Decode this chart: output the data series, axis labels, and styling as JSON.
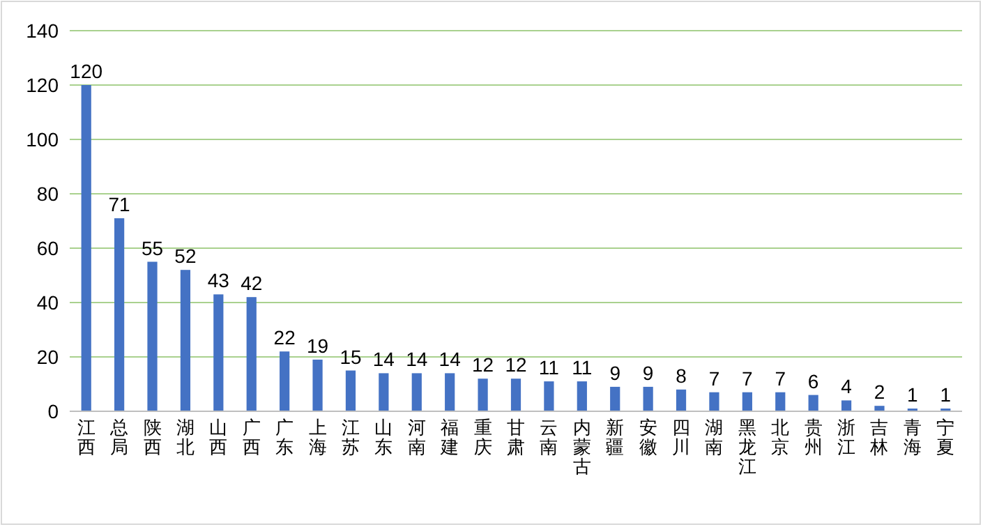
{
  "chart_data": {
    "type": "bar",
    "categories": [
      "江西",
      "总局",
      "陕西",
      "湖北",
      "山西",
      "广西",
      "广东",
      "上海",
      "江苏",
      "山东",
      "河南",
      "福建",
      "重庆",
      "甘肃",
      "云南",
      "内蒙古",
      "新疆",
      "安徽",
      "四川",
      "湖南",
      "黑龙江",
      "北京",
      "贵州",
      "浙江",
      "吉林",
      "青海",
      "宁夏"
    ],
    "values": [
      120,
      71,
      55,
      52,
      43,
      42,
      22,
      19,
      15,
      14,
      14,
      14,
      12,
      12,
      11,
      11,
      9,
      9,
      8,
      7,
      7,
      7,
      6,
      4,
      2,
      1,
      1
    ],
    "color": "#4472c4",
    "ylim": [
      0,
      140
    ],
    "yticks": [
      0,
      20,
      40,
      60,
      80,
      100,
      120,
      140
    ],
    "grid": "y",
    "data_labels": true
  }
}
